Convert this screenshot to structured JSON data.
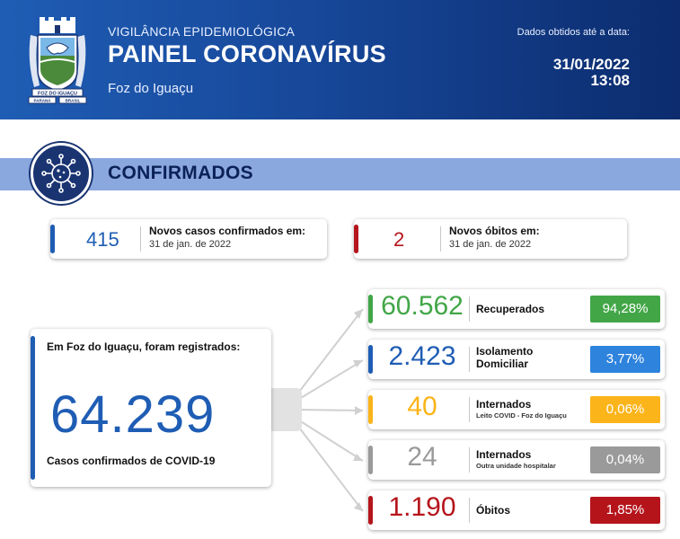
{
  "header": {
    "supertitle": "VIGILÂNCIA EPIDEMIOLÓGICA",
    "title": "PAINEL CORONAVÍRUS",
    "city": "Foz do Iguaçu",
    "date_label": "Dados obtidos até a data:",
    "date": "31/01/2022",
    "time": "13:08",
    "crest": {
      "icon": "city-crest-icon",
      "text_top": "FOZ DO IGUAÇU",
      "text_left": "PARANÁ",
      "text_right": "BRASIL"
    }
  },
  "section": {
    "title": "CONFIRMADOS",
    "icon": "virus-icon"
  },
  "new_cases": {
    "value": "415",
    "label": "Novos casos confirmados em:",
    "date": "31 de jan. de 2022",
    "color": "#1f5db4"
  },
  "new_deaths": {
    "value": "2",
    "label": "Novos óbitos em:",
    "date": "31 de jan. de 2022",
    "color": "#b5141b"
  },
  "total": {
    "lead": "Em Foz do Iguaçu, foram registrados:",
    "value": "64.239",
    "caption": "Casos confirmados de COVID-19"
  },
  "stats": [
    {
      "value": "60.562",
      "label": "Recuperados",
      "sub": "",
      "pct": "94,28%",
      "color": "#42a647"
    },
    {
      "value": "2.423",
      "label": "Isolamento Domiciliar",
      "sub": "",
      "pct": "3,77%",
      "color": "#2e83dd",
      "num_color": "#1f5db4",
      "accent": "#1f5db4"
    },
    {
      "value": "40",
      "label": "Internados",
      "sub": "Leito COVID - Foz do Iguaçu",
      "pct": "0,06%",
      "color": "#fbb41a"
    },
    {
      "value": "24",
      "label": "Internados",
      "sub": "Outra unidade hospitalar",
      "pct": "0,04%",
      "color": "#9a9a9a"
    },
    {
      "value": "1.190",
      "label": "Óbitos",
      "sub": "",
      "pct": "1,85%",
      "color": "#b5141b"
    }
  ]
}
